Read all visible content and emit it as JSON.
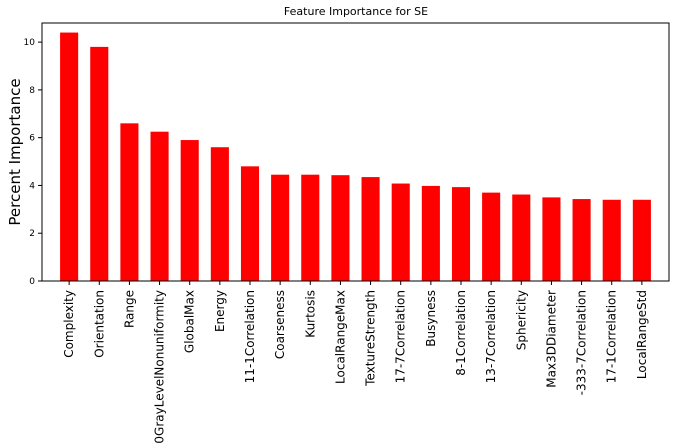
{
  "chart_data": {
    "type": "bar",
    "title": "Feature Importance for SE",
    "xlabel": "",
    "ylabel": "Percent Importance",
    "ylim": [
      0,
      10.8
    ],
    "yticks": [
      0,
      2,
      4,
      6,
      8,
      10
    ],
    "grid": false,
    "bar_color": "#ff0000",
    "categories": [
      "Complexity",
      "Orientation",
      "Range",
      "0GrayLevelNonuniformity",
      "GlobalMax",
      "Energy",
      "11-1Correlation",
      "Coarseness",
      "Kurtosis",
      "LocalRangeMax",
      "TextureStrength",
      "17-7Correlation",
      "Busyness",
      "8-1Correlation",
      "13-7Correlation",
      "Sphericity",
      "Max3DDiameter",
      "-333-7Correlation",
      "17-1Correlation",
      "LocalRangeStd"
    ],
    "values": [
      10.4,
      9.8,
      6.6,
      6.25,
      5.9,
      5.6,
      4.8,
      4.45,
      4.45,
      4.43,
      4.35,
      4.08,
      3.98,
      3.93,
      3.7,
      3.62,
      3.5,
      3.43,
      3.4,
      3.4
    ]
  }
}
